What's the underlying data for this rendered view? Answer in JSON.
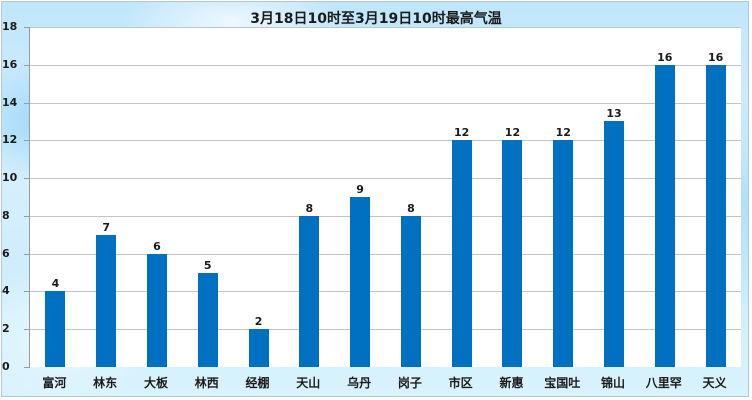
{
  "chart_data": {
    "type": "bar",
    "title": "3月18日10时至3月19日10时最高气温",
    "xlabel": "",
    "ylabel": "",
    "ylim": [
      0,
      18
    ],
    "yticks": [
      0,
      2,
      4,
      6,
      8,
      10,
      12,
      14,
      16,
      18
    ],
    "grid": true,
    "legend": null,
    "bar_color": "#0070c0",
    "categories": [
      "富河",
      "林东",
      "大板",
      "林西",
      "经棚",
      "天山",
      "乌丹",
      "岗子",
      "市区",
      "新惠",
      "宝国吐",
      "锦山",
      "八里罕",
      "天义"
    ],
    "values": [
      4,
      7,
      6,
      5,
      2,
      8,
      9,
      8,
      12,
      12,
      12,
      13,
      16,
      16
    ],
    "data_labels": [
      "4",
      "7",
      "6",
      "5",
      "2",
      "8",
      "9",
      "8",
      "12",
      "12",
      "12",
      "13",
      "16",
      "16"
    ]
  },
  "yaxis": {
    "labels": [
      "0",
      "2",
      "4",
      "6",
      "8",
      "10",
      "12",
      "14",
      "16",
      "18"
    ]
  }
}
